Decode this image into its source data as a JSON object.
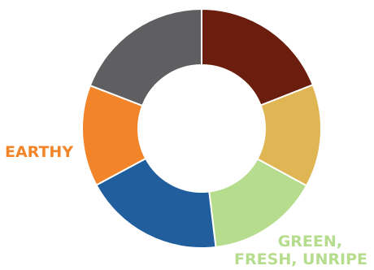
{
  "chart_data": {
    "type": "pie",
    "donut": true,
    "title": "",
    "start_angle_deg": 0,
    "slices": [
      {
        "label": "",
        "value": 19.6,
        "color": "#6b1e0d"
      },
      {
        "label": "",
        "value": 14.3,
        "color": "#e0b553"
      },
      {
        "label": "GREEN,\nFRESH, UNRIPE",
        "value": 15.6,
        "color": "#b6dc8d"
      },
      {
        "label": "",
        "value": 19.6,
        "color": "#215e9e"
      },
      {
        "label": "EARTHY",
        "value": 14.1,
        "color": "#f2852a"
      },
      {
        "label": "",
        "value": 19.7,
        "color": "#5f5f61"
      }
    ]
  }
}
